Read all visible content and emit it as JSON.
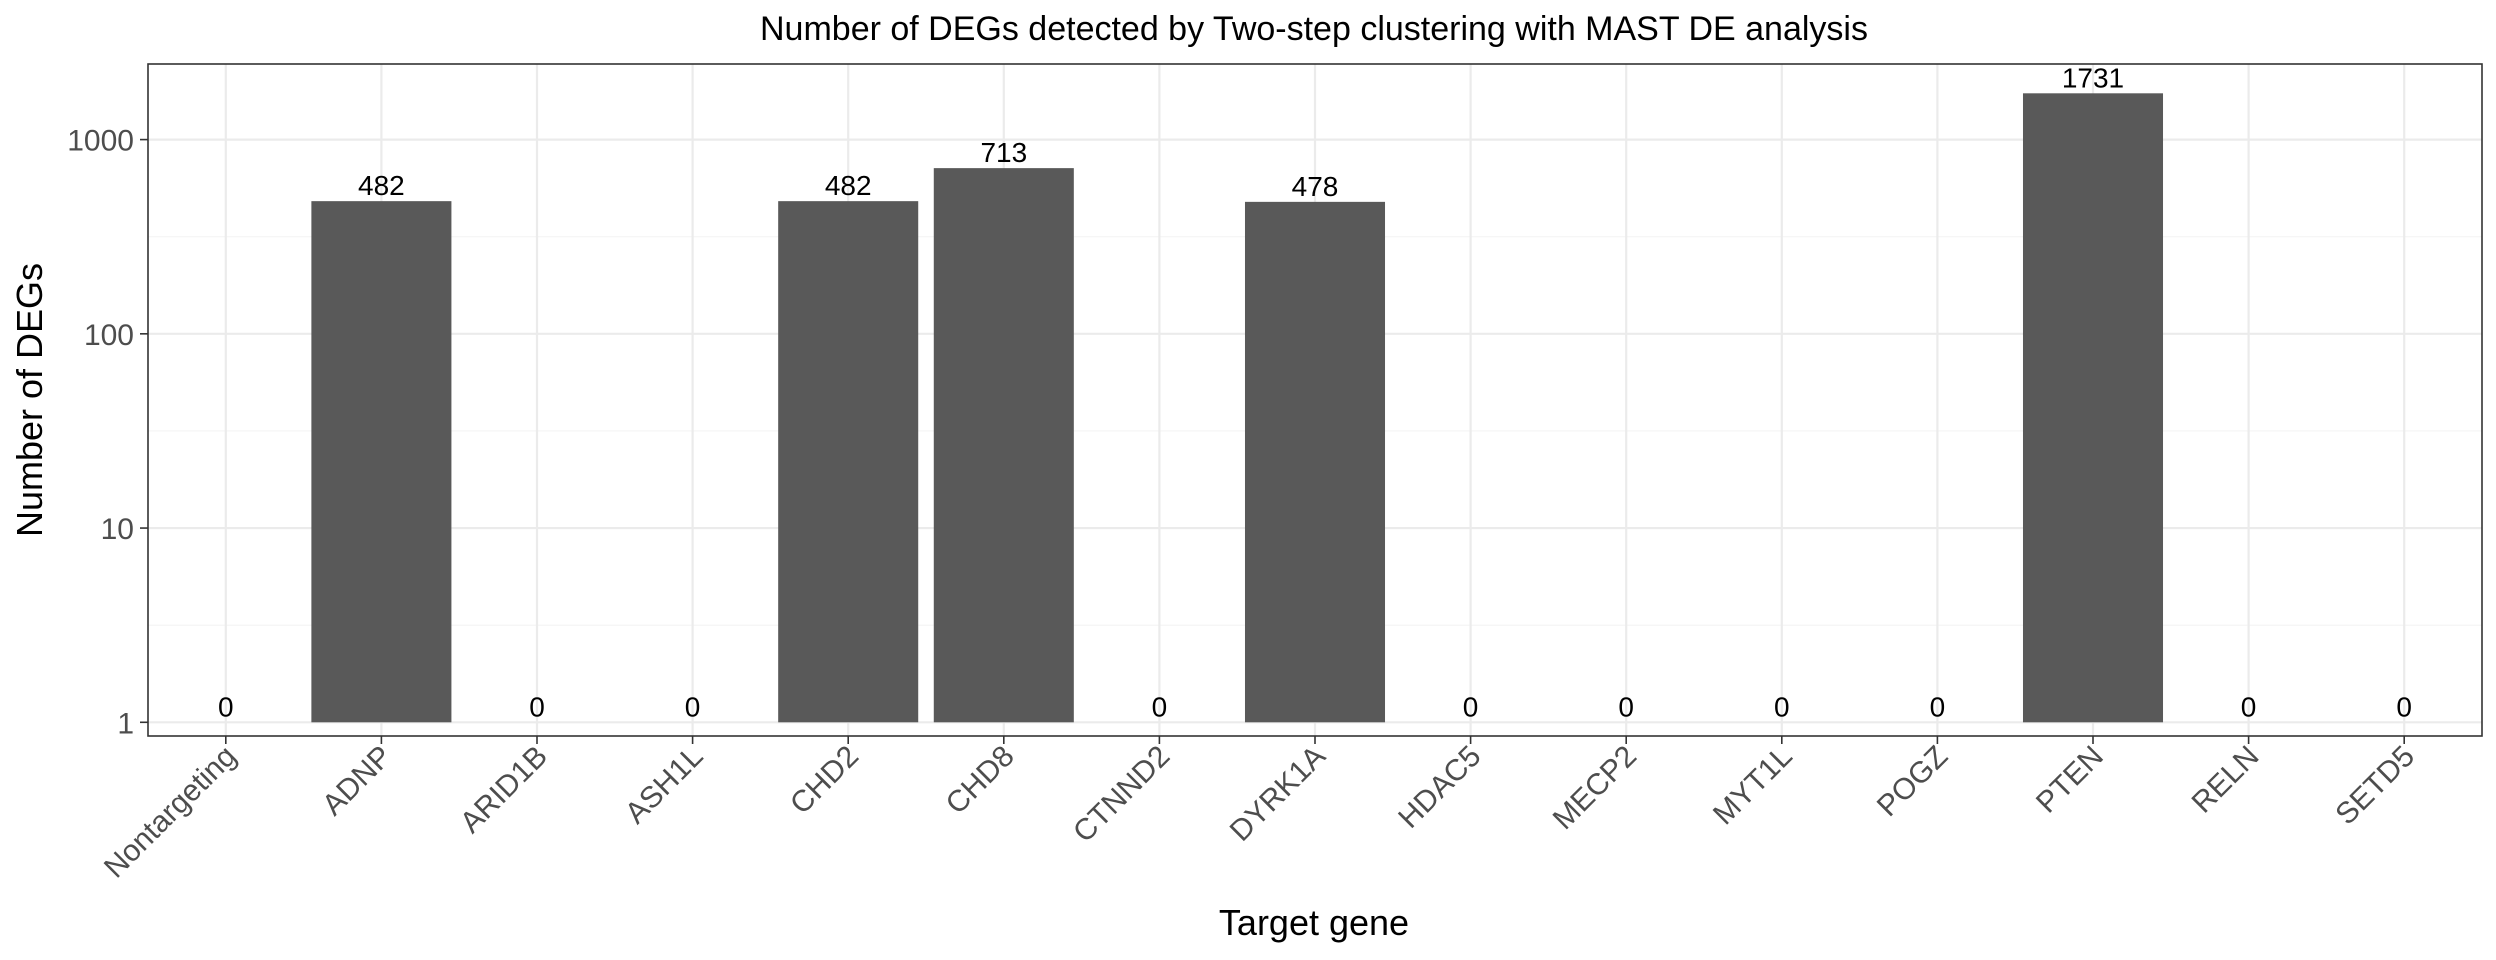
{
  "chart_data": {
    "type": "bar",
    "title": "Number of DEGs detected by Two-step clustering with MAST DE analysis",
    "xlabel": "Target gene",
    "ylabel": "Number of DEGs",
    "yscale": "log10",
    "ylim": [
      0.85,
      2450
    ],
    "yticks": [
      1,
      10,
      100,
      1000
    ],
    "ytick_labels": [
      "1",
      "10",
      "100",
      "1000"
    ],
    "grid": true,
    "categories": [
      "Nontargeting",
      "ADNP",
      "ARID1B",
      "ASH1L",
      "CHD2",
      "CHD8",
      "CTNND2",
      "DYRK1A",
      "HDAC5",
      "MECP2",
      "MYT1L",
      "POGZ",
      "PTEN",
      "RELN",
      "SETD5"
    ],
    "values": [
      0,
      482,
      0,
      0,
      482,
      713,
      0,
      478,
      0,
      0,
      0,
      0,
      1731,
      0,
      0
    ],
    "labels": [
      "0",
      "482",
      "0",
      "0",
      "482",
      "713",
      "0",
      "478",
      "0",
      "0",
      "0",
      "0",
      "1731",
      "0",
      "0"
    ],
    "bar_color": "#595959"
  }
}
